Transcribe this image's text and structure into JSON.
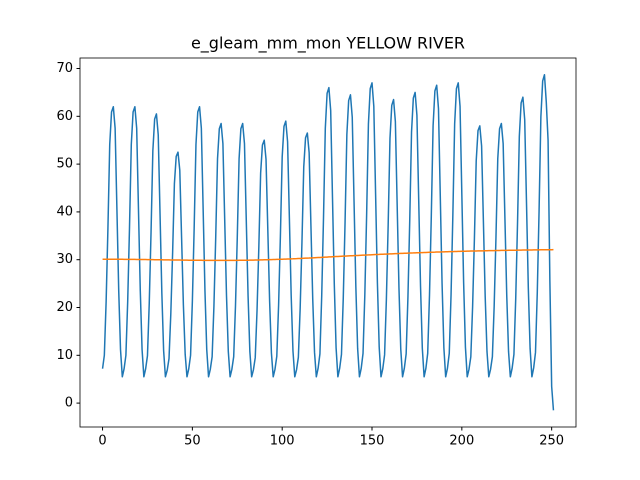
{
  "chart_data": {
    "type": "line",
    "title": "e_gleam_mm_mon YELLOW RIVER",
    "x": [
      0,
      1,
      2,
      3,
      4,
      5,
      6,
      7,
      8,
      9,
      10,
      11,
      12,
      13,
      14,
      15,
      16,
      17,
      18,
      19,
      20,
      21,
      22,
      23,
      24,
      25,
      26,
      27,
      28,
      29,
      30,
      31,
      32,
      33,
      34,
      35,
      36,
      37,
      38,
      39,
      40,
      41,
      42,
      43,
      44,
      45,
      46,
      47,
      48,
      49,
      50,
      51,
      52,
      53,
      54,
      55,
      56,
      57,
      58,
      59,
      60,
      61,
      62,
      63,
      64,
      65,
      66,
      67,
      68,
      69,
      70,
      71,
      72,
      73,
      74,
      75,
      76,
      77,
      78,
      79,
      80,
      81,
      82,
      83,
      84,
      85,
      86,
      87,
      88,
      89,
      90,
      91,
      92,
      93,
      94,
      95,
      96,
      97,
      98,
      99,
      100,
      101,
      102,
      103,
      104,
      105,
      106,
      107,
      108,
      109,
      110,
      111,
      112,
      113,
      114,
      115,
      116,
      117,
      118,
      119,
      120,
      121,
      122,
      123,
      124,
      125,
      126,
      127,
      128,
      129,
      130,
      131,
      132,
      133,
      134,
      135,
      136,
      137,
      138,
      139,
      140,
      141,
      142,
      143,
      144,
      145,
      146,
      147,
      148,
      149,
      150,
      151,
      152,
      153,
      154,
      155,
      156,
      157,
      158,
      159,
      160,
      161,
      162,
      163,
      164,
      165,
      166,
      167,
      168,
      169,
      170,
      171,
      172,
      173,
      174,
      175,
      176,
      177,
      178,
      179,
      180,
      181,
      182,
      183,
      184,
      185,
      186,
      187,
      188,
      189,
      190,
      191,
      192,
      193,
      194,
      195,
      196,
      197,
      198,
      199,
      200,
      201,
      202,
      203,
      204,
      205,
      206,
      207,
      208,
      209,
      210,
      211,
      212,
      213,
      214,
      215,
      216,
      217,
      218,
      219,
      220,
      221,
      222,
      223,
      224,
      225,
      226,
      227,
      228,
      229,
      230,
      231,
      232,
      233,
      234,
      235,
      236,
      237,
      238,
      239,
      240,
      241,
      242,
      243,
      244,
      245,
      246,
      247,
      248,
      249,
      250,
      251
    ],
    "series": [
      {
        "color": "#1f77b4",
        "values": [
          7.2,
          10.0,
          21.3,
          36.6,
          54.1,
          60.9,
          62.0,
          57.5,
          40.5,
          23.6,
          11.2,
          5.5,
          7.2,
          10.0,
          21.3,
          36.6,
          54.1,
          60.9,
          62.0,
          57.5,
          40.5,
          23.6,
          11.2,
          5.5,
          7.2,
          9.9,
          20.9,
          35.8,
          52.8,
          59.4,
          60.5,
          56.1,
          39.6,
          23.1,
          11.0,
          5.5,
          6.9,
          9.3,
          18.7,
          31.4,
          45.9,
          51.6,
          52.5,
          48.7,
          34.6,
          20.5,
          10.2,
          5.5,
          7.2,
          10.0,
          21.3,
          36.6,
          54.1,
          60.9,
          62.0,
          57.5,
          40.5,
          23.6,
          11.2,
          5.5,
          7.1,
          9.7,
          20.3,
          34.7,
          51.1,
          57.4,
          58.5,
          54.3,
          38.4,
          22.5,
          10.8,
          5.5,
          7.1,
          9.7,
          20.3,
          34.7,
          51.1,
          57.4,
          58.5,
          54.3,
          38.4,
          22.5,
          10.8,
          5.5,
          7.0,
          9.5,
          19.4,
          32.7,
          48.1,
          54.0,
          55.0,
          51.0,
          36.2,
          21.3,
          10.5,
          5.5,
          7.1,
          9.8,
          20.5,
          34.9,
          51.5,
          57.9,
          59.0,
          54.7,
          38.7,
          22.6,
          10.9,
          5.5,
          7.0,
          9.6,
          19.8,
          33.6,
          49.4,
          55.5,
          56.5,
          52.4,
          37.1,
          21.8,
          10.6,
          5.5,
          7.3,
          10.3,
          22.4,
          38.8,
          57.5,
          64.8,
          66.0,
          61.2,
          43.0,
          24.9,
          11.6,
          5.5,
          7.3,
          10.2,
          22.0,
          37.9,
          56.2,
          63.3,
          64.5,
          59.8,
          42.1,
          24.4,
          11.4,
          5.5,
          7.3,
          10.4,
          22.7,
          39.3,
          58.4,
          65.8,
          67.0,
          62.1,
          43.6,
          25.2,
          11.7,
          5.5,
          7.2,
          10.1,
          21.7,
          37.4,
          55.4,
          62.3,
          63.5,
          58.9,
          41.5,
          24.1,
          11.3,
          5.5,
          7.3,
          10.3,
          22.2,
          38.2,
          56.7,
          63.8,
          65.0,
          60.2,
          42.4,
          24.5,
          11.5,
          5.5,
          7.3,
          10.4,
          22.6,
          39.1,
          58.0,
          65.3,
          66.5,
          61.6,
          43.3,
          25.0,
          11.6,
          5.5,
          7.3,
          10.4,
          22.7,
          39.3,
          58.4,
          65.8,
          67.0,
          62.1,
          43.6,
          25.2,
          11.7,
          5.5,
          7.1,
          9.7,
          20.2,
          34.4,
          50.7,
          57.0,
          58.0,
          53.8,
          38.1,
          22.3,
          10.8,
          5.5,
          7.1,
          9.7,
          20.3,
          34.7,
          51.1,
          57.4,
          58.5,
          54.3,
          38.4,
          22.5,
          10.8,
          5.5,
          7.3,
          10.2,
          21.9,
          37.7,
          55.8,
          62.8,
          64.0,
          59.3,
          41.8,
          24.2,
          11.4,
          5.5,
          7.4,
          10.6,
          23.2,
          40.3,
          59.9,
          67.4,
          68.7,
          63.0,
          55.0,
          25.7,
          3.5,
          -1.5
        ]
      },
      {
        "color": "#ff7f0e",
        "values": [
          30.1,
          30.1,
          30.1,
          30.1,
          30.1,
          30.1,
          30.09,
          30.09,
          30.09,
          30.09,
          30.09,
          30.09,
          30.08,
          30.08,
          30.07,
          30.07,
          30.06,
          30.06,
          30.06,
          30.05,
          30.05,
          30.04,
          30.04,
          30.03,
          30.03,
          30.02,
          30.02,
          30.01,
          30.01,
          30.0,
          29.99,
          29.99,
          29.98,
          29.98,
          29.97,
          29.97,
          29.96,
          29.96,
          29.95,
          29.95,
          29.94,
          29.94,
          29.93,
          29.93,
          29.92,
          29.92,
          29.91,
          29.91,
          29.9,
          29.9,
          29.89,
          29.89,
          29.89,
          29.88,
          29.88,
          29.88,
          29.87,
          29.87,
          29.87,
          29.86,
          29.86,
          29.86,
          29.86,
          29.86,
          29.86,
          29.86,
          29.86,
          29.86,
          29.86,
          29.86,
          29.86,
          29.86,
          29.86,
          29.86,
          29.87,
          29.87,
          29.88,
          29.88,
          29.89,
          29.89,
          29.9,
          29.9,
          29.91,
          29.91,
          29.92,
          29.93,
          29.94,
          29.95,
          29.96,
          29.97,
          29.98,
          29.99,
          30.0,
          30.01,
          30.02,
          30.03,
          30.04,
          30.06,
          30.07,
          30.09,
          30.1,
          30.12,
          30.13,
          30.15,
          30.16,
          30.18,
          30.19,
          30.21,
          30.22,
          30.24,
          30.26,
          30.28,
          30.3,
          30.32,
          30.34,
          30.35,
          30.37,
          30.39,
          30.41,
          30.43,
          30.45,
          30.47,
          30.49,
          30.51,
          30.53,
          30.55,
          30.58,
          30.6,
          30.62,
          30.64,
          30.66,
          30.68,
          30.7,
          30.72,
          30.74,
          30.76,
          30.78,
          30.8,
          30.82,
          30.83,
          30.85,
          30.87,
          30.89,
          30.91,
          30.93,
          30.95,
          30.97,
          30.99,
          31.0,
          31.02,
          31.04,
          31.06,
          31.08,
          31.1,
          31.11,
          31.13,
          31.15,
          31.17,
          31.18,
          31.2,
          31.22,
          31.23,
          31.25,
          31.27,
          31.28,
          31.3,
          31.32,
          31.33,
          31.35,
          31.36,
          31.38,
          31.39,
          31.41,
          31.42,
          31.44,
          31.45,
          31.46,
          31.48,
          31.49,
          31.51,
          31.52,
          31.53,
          31.55,
          31.56,
          31.57,
          31.58,
          31.6,
          31.61,
          31.62,
          31.63,
          31.65,
          31.66,
          31.67,
          31.68,
          31.69,
          31.7,
          31.71,
          31.72,
          31.74,
          31.75,
          31.76,
          31.77,
          31.78,
          31.79,
          31.8,
          31.81,
          31.82,
          31.82,
          31.83,
          31.84,
          31.85,
          31.86,
          31.86,
          31.87,
          31.88,
          31.89,
          31.9,
          31.91,
          31.91,
          31.92,
          31.93,
          31.93,
          31.94,
          31.95,
          31.95,
          31.96,
          31.97,
          31.97,
          31.98,
          31.99,
          31.99,
          32.0,
          32.0,
          32.01,
          32.02,
          32.02,
          32.03,
          32.03,
          32.04,
          32.04,
          32.05,
          32.05,
          32.06,
          32.06,
          32.07,
          32.07,
          32.07,
          32.08,
          32.08,
          32.09,
          32.09,
          32.1
        ]
      }
    ],
    "xlim": [
      -12.55,
      263.55
    ],
    "xticks": [
      0,
      50,
      100,
      150,
      200,
      250
    ],
    "ylim": [
      -5.0,
      72.2
    ],
    "yticks": [
      0,
      10,
      20,
      30,
      40,
      50,
      60,
      70
    ],
    "grid": false
  }
}
